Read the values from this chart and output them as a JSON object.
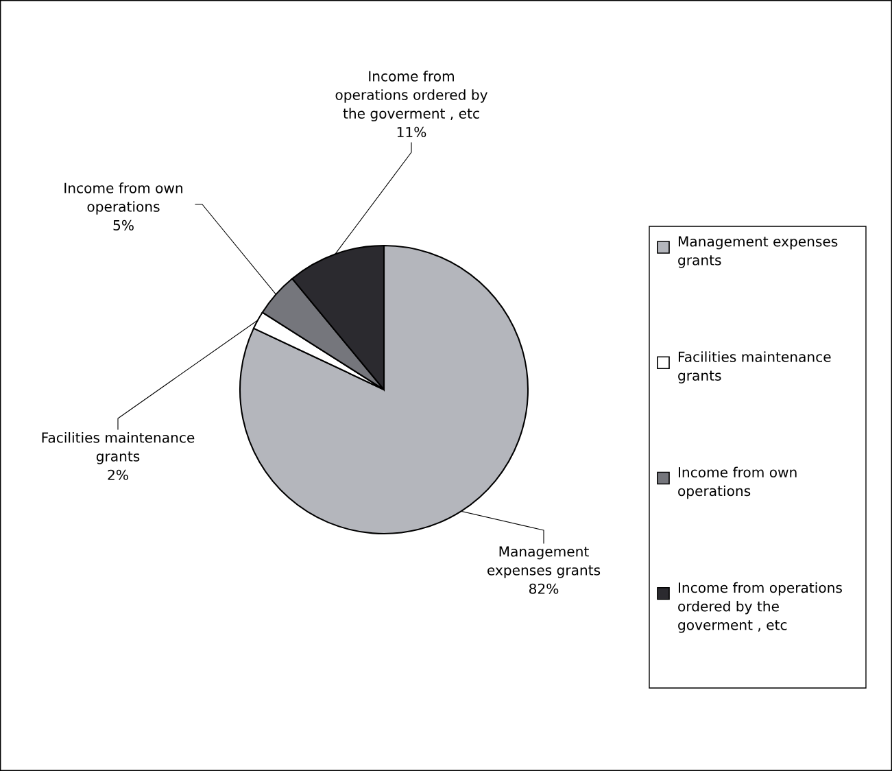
{
  "chart_data": {
    "type": "pie",
    "categories": [
      "Management expenses grants",
      "Facilities maintenance grants",
      "Income from own operations",
      "Income from operations ordered by the goverment , etc"
    ],
    "values": [
      82,
      2,
      5,
      11
    ],
    "value_labels": [
      "82%",
      "2%",
      "5%",
      "11%"
    ],
    "colors": [
      "#b4b6bc",
      "#ffffff",
      "#75767c",
      "#2b2a2f"
    ],
    "legend": "right"
  }
}
